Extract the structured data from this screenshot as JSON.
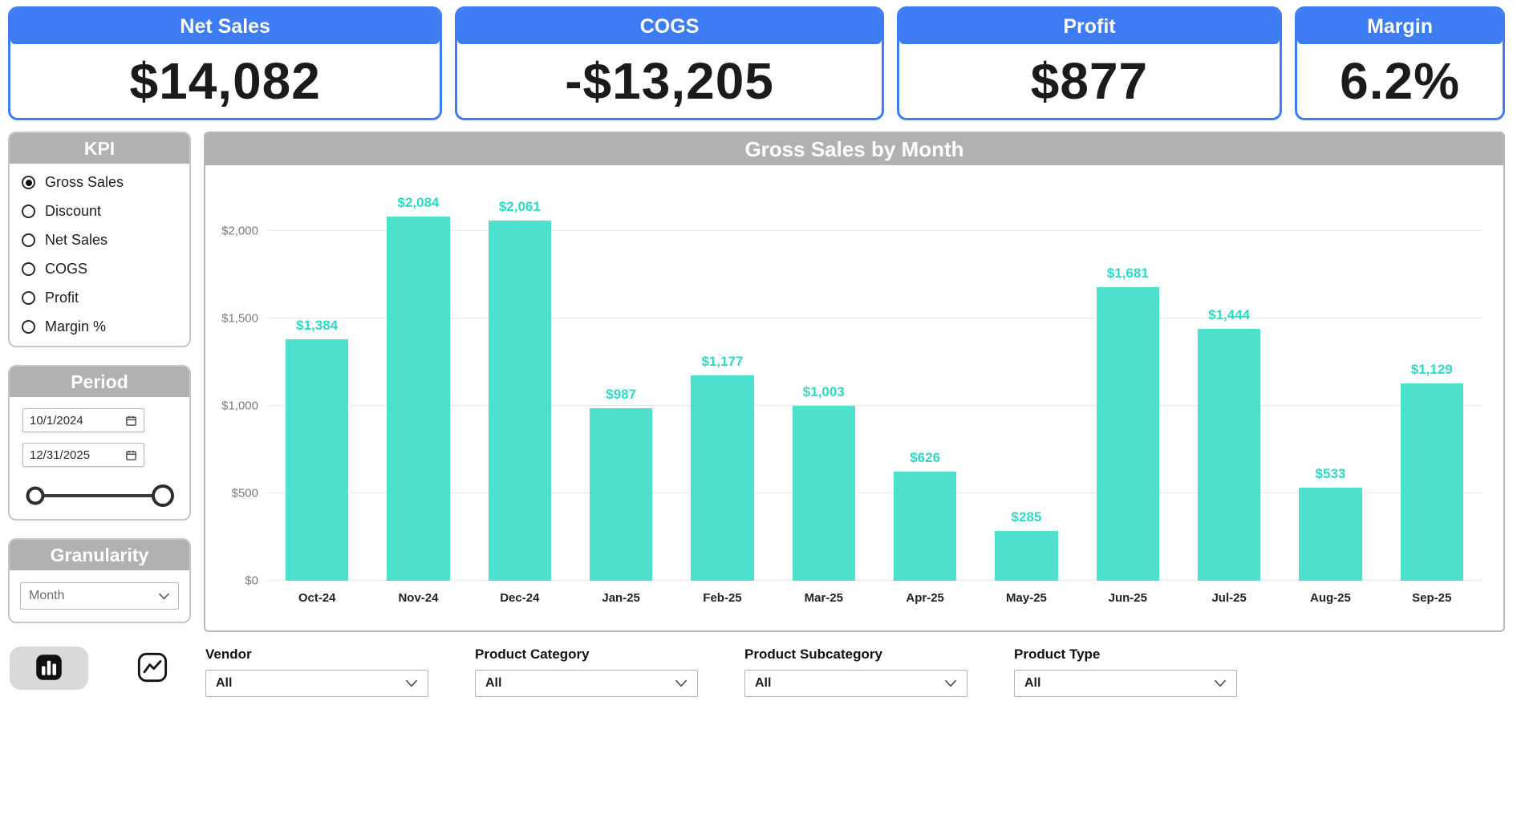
{
  "colors": {
    "accent_blue": "#3d7cf5",
    "bar_teal": "#4ce0cd",
    "header_gray": "#b1b1b1"
  },
  "kpi_cards": [
    {
      "label": "Net Sales",
      "value": "$14,082"
    },
    {
      "label": "COGS",
      "value": "-$13,205"
    },
    {
      "label": "Profit",
      "value": "$877"
    },
    {
      "label": "Margin",
      "value": "6.2%"
    }
  ],
  "kpi_panel": {
    "title": "KPI",
    "options": [
      {
        "label": "Gross Sales",
        "selected": true
      },
      {
        "label": "Discount",
        "selected": false
      },
      {
        "label": "Net Sales",
        "selected": false
      },
      {
        "label": "COGS",
        "selected": false
      },
      {
        "label": "Profit",
        "selected": false
      },
      {
        "label": "Margin %",
        "selected": false
      }
    ]
  },
  "period_panel": {
    "title": "Period",
    "start_date": "10/1/2024",
    "end_date": "12/31/2025"
  },
  "granularity_panel": {
    "title": "Granularity",
    "value": "Month"
  },
  "chart_data": {
    "type": "bar",
    "title": "Gross Sales by Month",
    "categories": [
      "Oct-24",
      "Nov-24",
      "Dec-24",
      "Jan-25",
      "Feb-25",
      "Mar-25",
      "Apr-25",
      "May-25",
      "Jun-25",
      "Jul-25",
      "Aug-25",
      "Sep-25"
    ],
    "values": [
      1384,
      2084,
      2061,
      987,
      1177,
      1003,
      626,
      285,
      1681,
      1444,
      533,
      1129
    ],
    "value_labels": [
      "$1,384",
      "$2,084",
      "$2,061",
      "$987",
      "$1,177",
      "$1,003",
      "$626",
      "$285",
      "$1,681",
      "$1,444",
      "$533",
      "$1,129"
    ],
    "y_ticks": [
      {
        "value": 0,
        "label": "$0"
      },
      {
        "value": 500,
        "label": "$500"
      },
      {
        "value": 1000,
        "label": "$1,000"
      },
      {
        "value": 1500,
        "label": "$1,500"
      },
      {
        "value": 2000,
        "label": "$2,000"
      }
    ],
    "ylim": [
      0,
      2250
    ],
    "bar_color": "#4ce0cd",
    "grid": true,
    "legend": false,
    "xlabel": "",
    "ylabel": ""
  },
  "filters": [
    {
      "label": "Vendor",
      "value": "All"
    },
    {
      "label": "Product Category",
      "value": "All"
    },
    {
      "label": "Product Subcategory",
      "value": "All"
    },
    {
      "label": "Product Type",
      "value": "All"
    }
  ]
}
